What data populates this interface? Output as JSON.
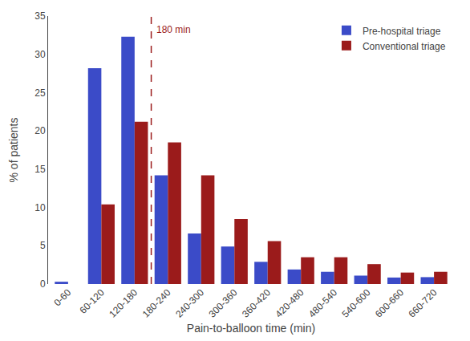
{
  "chart_data": {
    "type": "bar",
    "categories": [
      "0-60",
      "60-120",
      "120-180",
      "180-240",
      "240-300",
      "300-360",
      "360-420",
      "420-480",
      "480-540",
      "540-600",
      "600-660",
      "660-720"
    ],
    "series": [
      {
        "name": "Pre-hospital triage",
        "color": "#3b4bc8",
        "values": [
          0.3,
          28.2,
          32.3,
          14.2,
          6.6,
          4.9,
          2.9,
          1.9,
          1.6,
          1.1,
          0.85,
          0.9
        ]
      },
      {
        "name": "Conventional triage",
        "color": "#9b1b1b",
        "values": [
          0.0,
          10.4,
          21.2,
          18.5,
          14.2,
          8.5,
          5.6,
          3.5,
          3.5,
          2.6,
          1.5,
          1.6
        ]
      }
    ],
    "xlabel": "Pain-to-balloon time (min)",
    "ylabel": "% of patients",
    "ylim": [
      0,
      35
    ],
    "yticks": [
      0,
      5,
      10,
      15,
      20,
      25,
      30,
      35
    ],
    "vlines": [
      {
        "x": 2.5,
        "y": 34.2,
        "label": "180 min",
        "color": "#9b1b1b",
        "line_style": "dashed"
      }
    ],
    "legend": "upper right",
    "grid": false
  }
}
